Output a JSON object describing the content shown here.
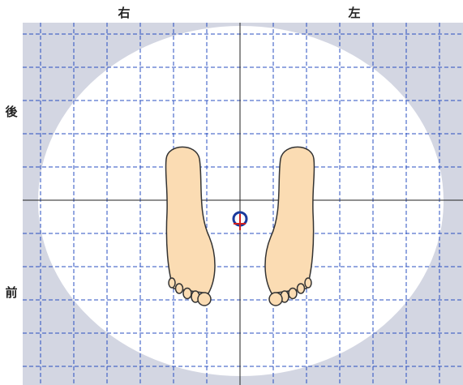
{
  "labels": {
    "top_left": "右",
    "top_right": "左",
    "side_upper": "後",
    "side_lower": "前"
  }
}
